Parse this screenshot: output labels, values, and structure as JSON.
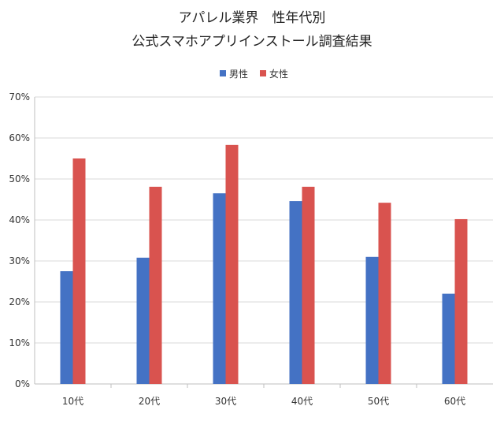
{
  "chart_data": {
    "type": "bar",
    "title_line1": "アパレル業界　性年代別",
    "title_line2": "公式スマホアプリインストール調査結果",
    "categories": [
      "10代",
      "20代",
      "30代",
      "40代",
      "50代",
      "60代"
    ],
    "series": [
      {
        "name": "男性",
        "color": "#4472c4",
        "values": [
          27.5,
          30.8,
          46.5,
          44.6,
          31.0,
          22.0
        ]
      },
      {
        "name": "女性",
        "color": "#d9534f",
        "values": [
          55.0,
          48.1,
          58.3,
          48.1,
          44.2,
          40.2
        ]
      }
    ],
    "y_ticks": [
      "0%",
      "10%",
      "20%",
      "30%",
      "40%",
      "50%",
      "60%",
      "70%"
    ],
    "ylim": [
      0,
      70
    ],
    "grid": true,
    "legend_position": "top-center"
  }
}
